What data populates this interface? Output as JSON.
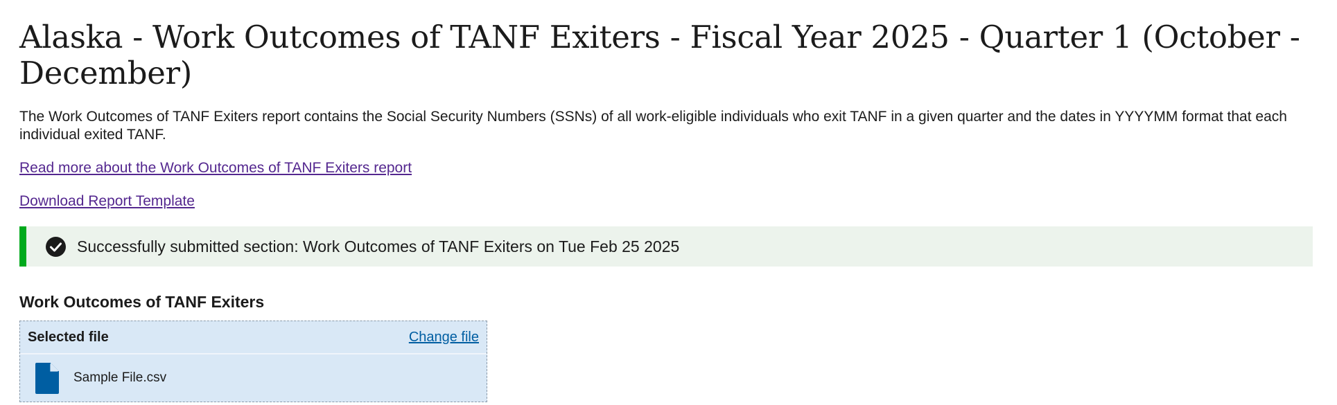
{
  "page": {
    "title": "Alaska - Work Outcomes of TANF Exiters - Fiscal Year 2025 - Quarter 1 (October - December)",
    "description": "The Work Outcomes of TANF Exiters report contains the Social Security Numbers (SSNs) of all work-eligible individuals who exit TANF in a given quarter and the dates in YYYYMM format that each individual exited TANF."
  },
  "links": {
    "read_more": "Read more about the Work Outcomes of TANF Exiters report",
    "download_template": "Download Report Template"
  },
  "alert": {
    "type": "success",
    "icon": "check-circle-icon",
    "message": "Successfully submitted section: Work Outcomes of TANF Exiters on Tue Feb 25 2025"
  },
  "section": {
    "heading": "Work Outcomes of TANF Exiters",
    "file_input": {
      "header_label": "Selected file",
      "change_label": "Change file",
      "file_icon": "file-icon",
      "file_name": "Sample File.csv"
    }
  },
  "colors": {
    "link_visited": "#54278f",
    "link_primary": "#005ea2",
    "success_border": "#00a91c",
    "success_bg": "#ecf3ec",
    "file_box_bg": "#d9e8f6",
    "file_icon": "#005ea2"
  }
}
